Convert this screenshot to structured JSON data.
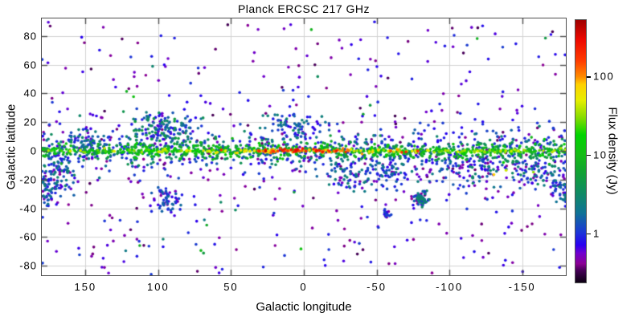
{
  "chart_data": {
    "type": "scatter",
    "title": "Planck ERCSC 217 GHz",
    "xlabel": "Galactic longitude",
    "ylabel": "Galactic latitude",
    "xlim": [
      180,
      -180
    ],
    "ylim": [
      -86.6,
      92.2
    ],
    "x_ticks": [
      150,
      100,
      50,
      0,
      -50,
      -100,
      -150
    ],
    "y_ticks": [
      80,
      60,
      40,
      20,
      0,
      -20,
      -40,
      -60,
      -80
    ],
    "grid": true,
    "grid_color": "#d3d3d3",
    "frame_color": "#4f4f4f",
    "legend_position": "none",
    "colorbar": {
      "label": "Flux density (Jy)",
      "scale": "log",
      "tick_values": [
        1,
        10,
        100
      ],
      "tick_labels": [
        "1",
        "10",
        "100"
      ],
      "range_jy": [
        0.23,
        535
      ],
      "stops": [
        {
          "v": 0.23,
          "c": "#0b0012"
        },
        {
          "v": 0.33,
          "c": "#470058"
        },
        {
          "v": 0.4,
          "c": "#8b0094"
        },
        {
          "v": 0.55,
          "c": "#6f00cf"
        },
        {
          "v": 0.7,
          "c": "#2800f0"
        },
        {
          "v": 1.0,
          "c": "#1c35d8"
        },
        {
          "v": 1.8,
          "c": "#0f7395"
        },
        {
          "v": 3.2,
          "c": "#108a64"
        },
        {
          "v": 6.0,
          "c": "#12a233"
        },
        {
          "v": 10,
          "c": "#16bc16"
        },
        {
          "v": 18,
          "c": "#00d400"
        },
        {
          "v": 30,
          "c": "#86dc00"
        },
        {
          "v": 50,
          "c": "#e6ee00"
        },
        {
          "v": 80,
          "c": "#ffd000"
        },
        {
          "v": 100,
          "c": "#ff8c00"
        },
        {
          "v": 160,
          "c": "#ff3c00"
        },
        {
          "v": 300,
          "c": "#ed0800"
        },
        {
          "v": 535,
          "c": "#9e0000"
        }
      ]
    },
    "points_spec": {
      "seed": 7,
      "marker_radius": 1.8,
      "total_points": 3113,
      "components": [
        {
          "name": "plane-bright",
          "n": 320,
          "l": [
            "u",
            -180,
            180
          ],
          "b": [
            "g",
            0,
            0.7
          ],
          "logf": [
            0.85,
            1.7
          ],
          "boost": [
            0.85,
            40
          ]
        },
        {
          "name": "plane-hot-center",
          "n": 22,
          "l": [
            "g",
            0,
            22
          ],
          "b": [
            "g",
            0,
            0.6
          ],
          "logf": [
            1.9,
            2.6
          ]
        },
        {
          "name": "plane-hot-south",
          "n": 6,
          "l": [
            "g",
            -73,
            7
          ],
          "b": [
            "g",
            0,
            0.7
          ],
          "logf": [
            1.9,
            2.35
          ]
        },
        {
          "name": "plane-hot-right",
          "n": 3,
          "l": [
            "g",
            -140,
            15
          ],
          "b": [
            "g",
            -10,
            5
          ],
          "logf": [
            1.5,
            2.1
          ]
        },
        {
          "name": "plane-green",
          "n": 560,
          "l": [
            "u",
            -180,
            180
          ],
          "b": [
            "g",
            0,
            2.8
          ],
          "logf": [
            0.55,
            1.2
          ]
        },
        {
          "name": "plane-blue",
          "n": 520,
          "l": [
            "u",
            -180,
            180
          ],
          "b": [
            "g",
            0,
            6
          ],
          "logf": [
            -0.15,
            0.6
          ]
        },
        {
          "name": "mid-latitude-faint",
          "n": 300,
          "l": [
            "u",
            -180,
            180
          ],
          "b": [
            "g",
            0,
            12
          ],
          "logf": [
            -0.45,
            0.1
          ]
        },
        {
          "name": "high-lat-background",
          "n": 400,
          "l": [
            "u",
            -180,
            180
          ],
          "b": [
            "u",
            -86,
            92
          ],
          "logf": [
            -0.5,
            0.05
          ]
        },
        {
          "name": "high-lat-bright",
          "n": 26,
          "l": [
            "u",
            -180,
            180
          ],
          "b": [
            "u",
            -80,
            85
          ],
          "logf": [
            0.3,
            1.1
          ]
        },
        {
          "name": "cygnus-clump",
          "n": 165,
          "l": [
            "g",
            97,
            13
          ],
          "b": [
            "g",
            14,
            6.5
          ],
          "logf": [
            -0.3,
            0.75
          ]
        },
        {
          "name": "l150-clump",
          "n": 70,
          "l": [
            "g",
            150,
            9
          ],
          "b": [
            "g",
            6,
            5
          ],
          "logf": [
            -0.35,
            0.5
          ]
        },
        {
          "name": "taurus-clump",
          "n": 90,
          "l": [
            "g",
            170,
            8
          ],
          "b": [
            "g",
            -16,
            7
          ],
          "logf": [
            -0.35,
            0.55
          ]
        },
        {
          "name": "left-edge-south",
          "n": 80,
          "l": [
            "g",
            178,
            6
          ],
          "b": [
            "g",
            -28,
            5
          ],
          "logf": [
            -0.4,
            0.4
          ]
        },
        {
          "name": "orion-clump",
          "n": 60,
          "l": [
            "g",
            -158,
            9
          ],
          "b": [
            "g",
            -14,
            6
          ],
          "logf": [
            -0.35,
            0.5
          ]
        },
        {
          "name": "ophiuchus-clump",
          "n": 70,
          "l": [
            "g",
            8,
            10
          ],
          "b": [
            "g",
            17,
            5
          ],
          "logf": [
            -0.3,
            0.5
          ]
        },
        {
          "name": "aquila-south",
          "n": 80,
          "l": [
            "g",
            -32,
            10
          ],
          "b": [
            "g",
            -17,
            6
          ],
          "logf": [
            -0.4,
            0.45
          ]
        },
        {
          "name": "south-plane-blue",
          "n": 150,
          "l": [
            "g",
            -115,
            32
          ],
          "b": [
            "g",
            -14,
            7
          ],
          "logf": [
            -0.4,
            0.55
          ]
        },
        {
          "name": "lmc-clump",
          "n": 75,
          "l": [
            "g",
            -81,
            2.2
          ],
          "b": [
            "g",
            -33,
            2.2
          ],
          "logf": [
            -0.45,
            0.5
          ]
        },
        {
          "name": "smc-clump",
          "n": 16,
          "l": [
            "g",
            -57,
            1.5
          ],
          "b": [
            "g",
            -44,
            1.5
          ],
          "logf": [
            -0.45,
            0.2
          ]
        },
        {
          "name": "l95-south-clump",
          "n": 60,
          "l": [
            "g",
            95,
            6
          ],
          "b": [
            "g",
            -33,
            4
          ],
          "logf": [
            -0.4,
            0.3
          ]
        },
        {
          "name": "chamaeleon-clump",
          "n": 40,
          "l": [
            "g",
            -60,
            6
          ],
          "b": [
            "g",
            -16,
            4
          ],
          "logf": [
            -0.35,
            0.4
          ]
        }
      ]
    }
  }
}
